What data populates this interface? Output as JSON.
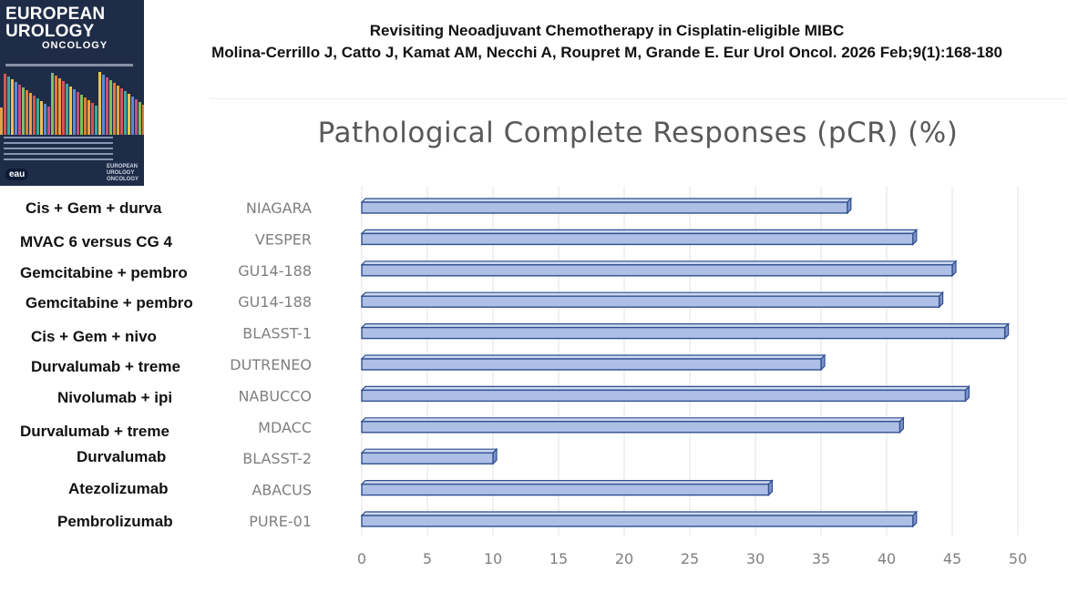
{
  "journal_cover": {
    "title_line1": "EUROPEAN",
    "title_line2": "UROLOGY",
    "title_line3": "ONCOLOGY",
    "badge": "eau",
    "footer_line1": "EUROPEAN",
    "footer_line2": "UROLOGY",
    "footer_line3": "ONCOLOGY"
  },
  "header": {
    "title": "Revisiting Neoadjuvant Chemotherapy in Cisplatin-eligible MIBC",
    "citation": "Molina-Cerrillo J, Catto J, Kamat AM, Necchi A, Roupret M, Grande E. Eur Urol Oncol. 2026 Feb;9(1):168-180"
  },
  "drug_labels": [
    "Cis + Gem + durva",
    "MVAC 6 versus CG 4",
    "Gemcitabine + pembro",
    "Gemcitabine + pembro",
    "Cis + Gem + nivo",
    "Durvalumab + treme",
    "Nivolumab + ipi",
    "Durvalumab + treme",
    "Durvalumab",
    "Atezolizumab",
    "Pembrolizumab"
  ],
  "chart_data": {
    "type": "bar",
    "orientation": "horizontal",
    "title": "Pathological Complete Responses (pCR) (%)",
    "categories": [
      "NIAGARA",
      "VESPER",
      "GU14-188",
      "GU14-188",
      "BLASST-1",
      "DUTRENEO",
      "NABUCCO",
      "MDACC",
      "BLASST-2",
      "ABACUS",
      "PURE-01"
    ],
    "values": [
      37,
      42,
      45,
      44,
      49,
      35,
      46,
      41,
      10,
      31,
      42
    ],
    "xlim": [
      0,
      50
    ],
    "xticks": [
      "0",
      "5",
      "10",
      "15",
      "20",
      "25",
      "30",
      "35",
      "40",
      "45",
      "50"
    ],
    "grid": true,
    "colors": {
      "bar_fill": "#aebfe6",
      "bar_stroke": "#2f4f8f",
      "bar_side": "#7d93c9",
      "grid": "#e3e3e3",
      "tick": "#7f7f7f"
    }
  }
}
